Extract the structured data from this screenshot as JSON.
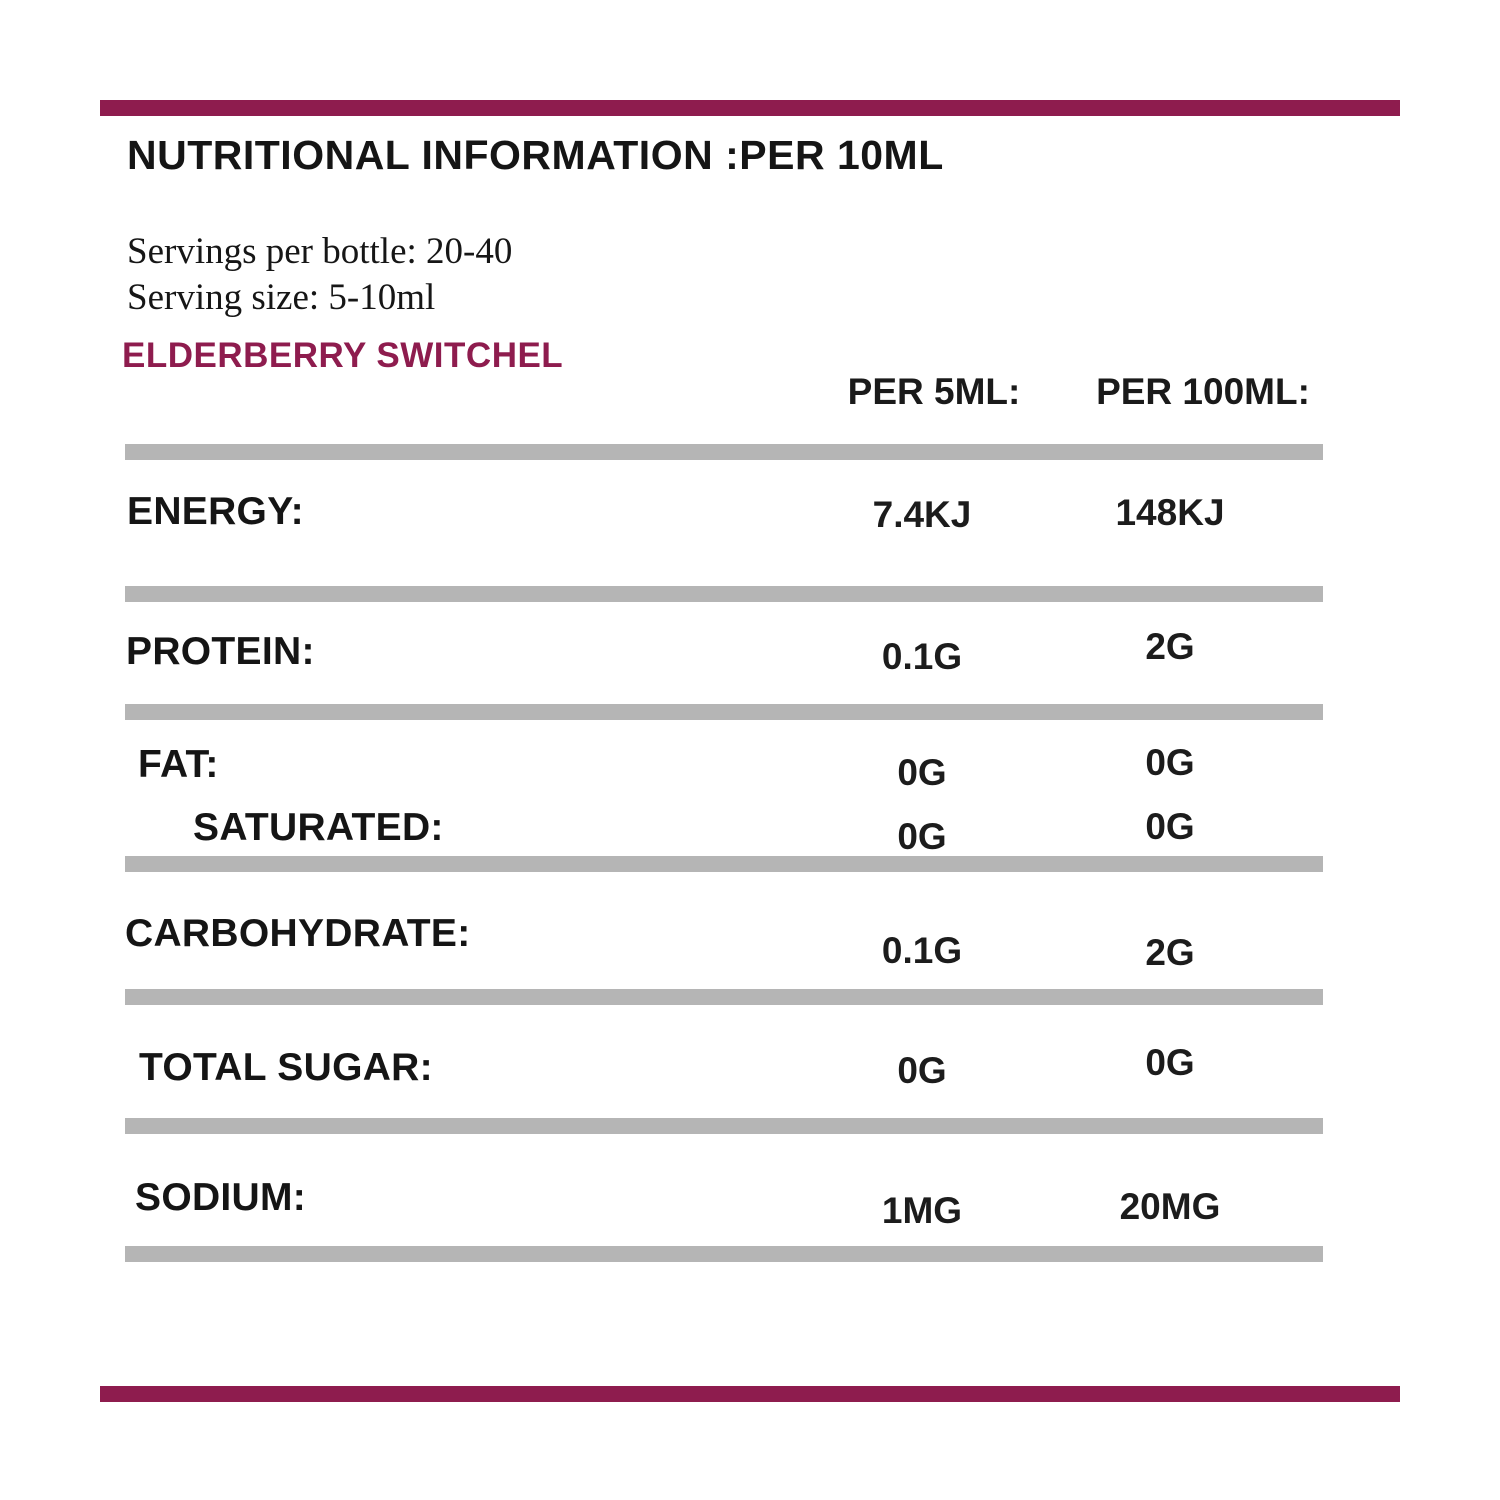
{
  "page": {
    "background": "#ffffff",
    "accent_color": "#8e1c4e",
    "divider_color": "#b5b5b5",
    "text_color": "#1a1a1a"
  },
  "header": {
    "title": "NUTRITIONAL INFORMATION :PER 10ML"
  },
  "serving_info": {
    "servings_per_bottle": "Servings per bottle: 20-40",
    "serving_size": "Serving size: 5-10ml"
  },
  "product_name": "ELDERBERRY SWITCHEL",
  "columns": {
    "per5": "PER 5ML:",
    "per100": "PER 100ML:"
  },
  "rows": [
    {
      "label": "ENERGY:",
      "per5": "7.4KJ",
      "per100": "148KJ"
    },
    {
      "label": "PROTEIN:",
      "per5": "0.1G",
      "per100": "2G"
    },
    {
      "label": "FAT:",
      "per5": "0G",
      "per100": "0G"
    },
    {
      "label": "SATURATED:",
      "per5": "0G",
      "per100": "0G"
    },
    {
      "label": "CARBOHYDRATE:",
      "per5": "0.1G",
      "per100": "2G"
    },
    {
      "label": "TOTAL SUGAR:",
      "per5": "0G",
      "per100": "0G"
    },
    {
      "label": "SODIUM:",
      "per5": "1MG",
      "per100": "20MG"
    }
  ]
}
